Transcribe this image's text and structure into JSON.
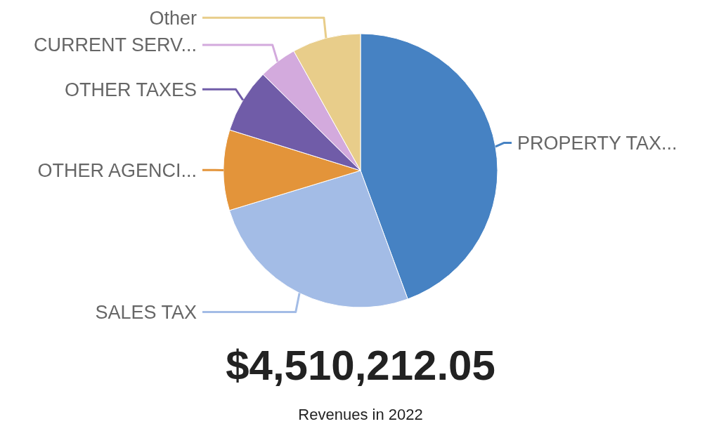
{
  "chart_data": {
    "type": "pie",
    "title": "$4,510,212.05",
    "subtitle": "Revenues in 2022",
    "categories": [
      "PROPERTY TAX...",
      "SALES TAX",
      "OTHER AGENCI...",
      "OTHER TAXES",
      "CURRENT SERV...",
      "Other"
    ],
    "values": [
      44.4,
      25.9,
      9.5,
      7.6,
      4.5,
      8.1
    ],
    "colors": [
      "#4682c3",
      "#a3bce6",
      "#e3943a",
      "#705ca8",
      "#d3aadd",
      "#e8cd8a"
    ]
  }
}
